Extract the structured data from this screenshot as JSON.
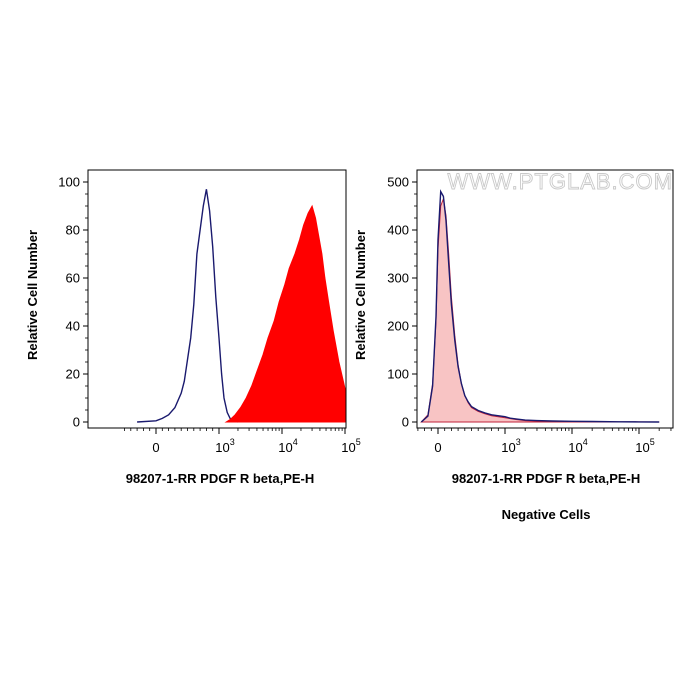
{
  "watermark": "WWW.PTGLAB.COM",
  "chart_data": [
    {
      "type": "histogram",
      "title": "",
      "xlabel": "98207-1-RR PDGF R beta,PE-H",
      "ylabel": "Relative Cell Number",
      "xscale": "biexponential",
      "xlim": [
        -700,
        400000
      ],
      "ylim": [
        0,
        100
      ],
      "yticks": [
        0,
        20,
        40,
        60,
        80,
        100
      ],
      "xticks": [
        {
          "base": "0",
          "exp": "",
          "value": 0
        },
        {
          "base": "10",
          "exp": "3",
          "value": 1000
        },
        {
          "base": "10",
          "exp": "4",
          "value": 10000
        },
        {
          "base": "10",
          "exp": "5",
          "value": 100000
        }
      ],
      "series": [
        {
          "style": "outline",
          "color": "#1a1a6e",
          "x": [
            -300,
            0,
            100,
            200,
            300,
            400,
            450,
            500,
            550,
            600,
            650,
            700,
            750,
            800,
            850,
            900,
            950,
            1000,
            1100,
            1200,
            1350,
            1500,
            1700,
            2000
          ],
          "y": [
            0,
            0.5,
            1.5,
            3,
            6,
            12,
            17,
            26,
            35,
            49,
            70,
            80,
            90,
            97,
            88,
            73,
            52,
            35,
            20,
            10,
            4,
            1.5,
            0.5,
            0
          ]
        },
        {
          "style": "filled",
          "color": "#ff0000",
          "x": [
            1300,
            1500,
            1800,
            2200,
            2700,
            3300,
            4000,
            5000,
            6000,
            7500,
            9000,
            11000,
            13000,
            16000,
            19000,
            22000,
            26000,
            30000,
            34000,
            38000,
            43000,
            48000,
            55000,
            65000,
            80000,
            100000,
            120000,
            150000,
            180000,
            220000
          ],
          "y": [
            0,
            1,
            3,
            6,
            10,
            15,
            21,
            28,
            35,
            42,
            50,
            57,
            64,
            70,
            76,
            82,
            87,
            90,
            85,
            78,
            70,
            60,
            50,
            38,
            25,
            14,
            7,
            3,
            1,
            0
          ]
        }
      ]
    },
    {
      "type": "histogram",
      "title": "Negative Cells",
      "xlabel": "98207-1-RR PDGF R beta,PE-H",
      "ylabel": "Relative Cell Number",
      "xscale": "biexponential",
      "xlim": [
        -700,
        400000
      ],
      "ylim": [
        0,
        500
      ],
      "yticks": [
        0,
        100,
        200,
        300,
        400,
        500
      ],
      "xticks": [
        {
          "base": "0",
          "exp": "",
          "value": 0
        },
        {
          "base": "10",
          "exp": "3",
          "value": 1000
        },
        {
          "base": "10",
          "exp": "4",
          "value": 10000
        },
        {
          "base": "10",
          "exp": "5",
          "value": 100000
        }
      ],
      "series": [
        {
          "style": "filled",
          "color": "#f8c4c4",
          "stroke": "#c0203a",
          "x": [
            -250,
            -150,
            -80,
            -30,
            0,
            40,
            80,
            120,
            160,
            200,
            250,
            300,
            350,
            400,
            450,
            500,
            600,
            700,
            800,
            1000,
            1200,
            1500,
            2000,
            3000,
            5000,
            10000,
            20000,
            50000,
            100000,
            200000
          ],
          "y": [
            0,
            15,
            80,
            210,
            360,
            450,
            465,
            430,
            350,
            260,
            180,
            120,
            80,
            55,
            40,
            30,
            22,
            17,
            13,
            9,
            7,
            5,
            3,
            2,
            1.5,
            1,
            0.5,
            0.3,
            0.2,
            0
          ]
        },
        {
          "style": "outline",
          "color": "#1a1a6e",
          "x": [
            -250,
            -150,
            -80,
            -30,
            0,
            40,
            80,
            120,
            160,
            200,
            250,
            300,
            350,
            400,
            450,
            500,
            600,
            700,
            800,
            1000,
            1200,
            1500,
            2000,
            3000,
            5000,
            10000,
            20000,
            50000,
            100000,
            200000
          ],
          "y": [
            0,
            12,
            75,
            220,
            380,
            480,
            470,
            420,
            330,
            245,
            170,
            115,
            80,
            55,
            42,
            32,
            24,
            19,
            15,
            11,
            8,
            6,
            4,
            3,
            2,
            1.5,
            1,
            0.5,
            0.3,
            0
          ]
        }
      ]
    }
  ]
}
